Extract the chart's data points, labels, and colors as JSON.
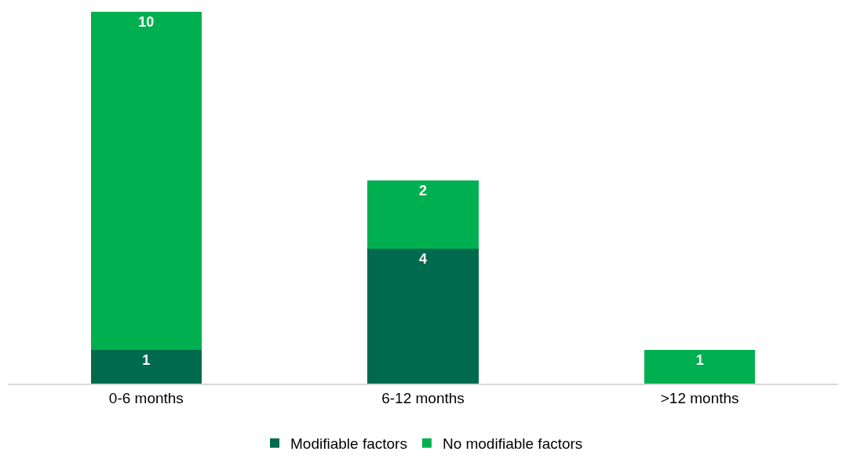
{
  "chart_data": {
    "type": "bar",
    "stacked": true,
    "data_labels": true,
    "legend": "bottom",
    "categories": [
      "0-6 months",
      "6-12 months",
      ">12 months"
    ],
    "series": [
      {
        "name": "Modifiable factors",
        "color": "#006a4e",
        "values": [
          1,
          4,
          null
        ]
      },
      {
        "name": "No modifiable factors",
        "color": "#00b050",
        "values": [
          10,
          2,
          1
        ]
      }
    ]
  }
}
